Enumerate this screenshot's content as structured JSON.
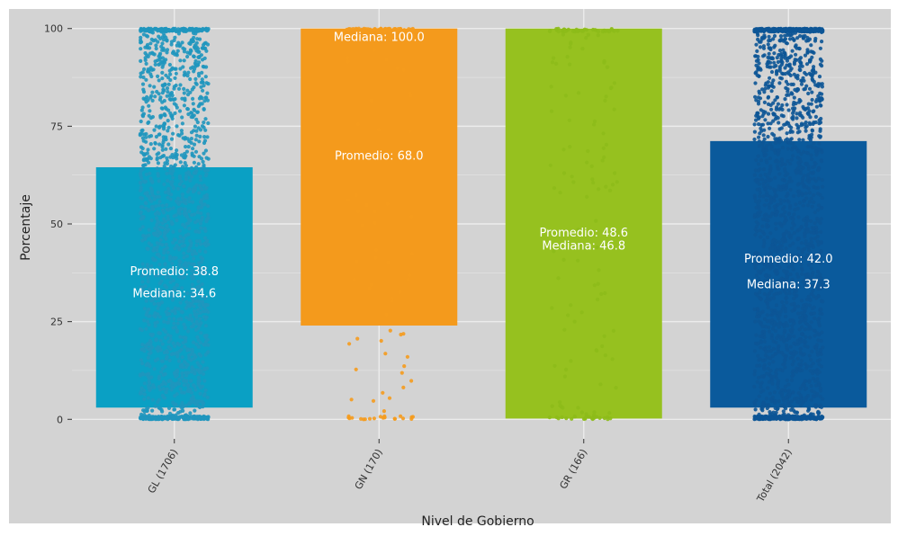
{
  "chart_data": {
    "type": "bar",
    "xlabel": "Nivel de Gobierno",
    "ylabel": "Porcentaje",
    "ylim": [
      -5,
      105
    ],
    "yticks": [
      0,
      25,
      50,
      75,
      100
    ],
    "grid": true,
    "background": "#d3d3d3",
    "grid_color": "#ececec",
    "label_color": "#ffffff",
    "categories": [
      "GL (1706)",
      "GN (170)",
      "GR (166)",
      "Total (2042)"
    ],
    "bars": [
      {
        "category": "GL (1706)",
        "low": 3,
        "high": 64.5,
        "color": "#0aa0c4",
        "mean_label": "Promedio: 38.8",
        "median_label": "Mediana: 34.6",
        "mean_y": 36.9,
        "median_y": 31.2
      },
      {
        "category": "GN (170)",
        "low": 24,
        "high": 100,
        "color": "#f49a1c",
        "mean_label": "Promedio: 68.0",
        "median_label": "Mediana: 100.0",
        "mean_y": 66.4,
        "median_y": 96.8
      },
      {
        "category": "GR (166)",
        "low": 0.2,
        "high": 100,
        "color": "#96c11f",
        "mean_label": "Promedio: 48.6",
        "median_label": "Mediana: 46.8",
        "mean_y": 46.8,
        "median_y": 43.4
      },
      {
        "category": "Total (2042)",
        "low": 3,
        "high": 71.2,
        "color": "#0a5a9c",
        "mean_label": "Promedio: 42.0",
        "median_label": "Mediana: 37.3",
        "mean_y": 40.1,
        "median_y": 33.6
      }
    ],
    "jitter_points": [
      {
        "category": "GL (1706)",
        "count": 1706,
        "color": "#1f96be",
        "share_at_0": 0.12,
        "share_at_100": 0.08
      },
      {
        "category": "GN (170)",
        "count": 170,
        "color": "#f59b1d",
        "share_at_0": 0.12,
        "share_at_100": 0.55
      },
      {
        "category": "GR (166)",
        "count": 166,
        "color": "#8dbb1a",
        "share_at_0": 0.15,
        "share_at_100": 0.25
      },
      {
        "category": "Total (2042)",
        "count": 2042,
        "color": "#0c5596",
        "share_at_0": 0.12,
        "share_at_100": 0.12
      }
    ]
  }
}
